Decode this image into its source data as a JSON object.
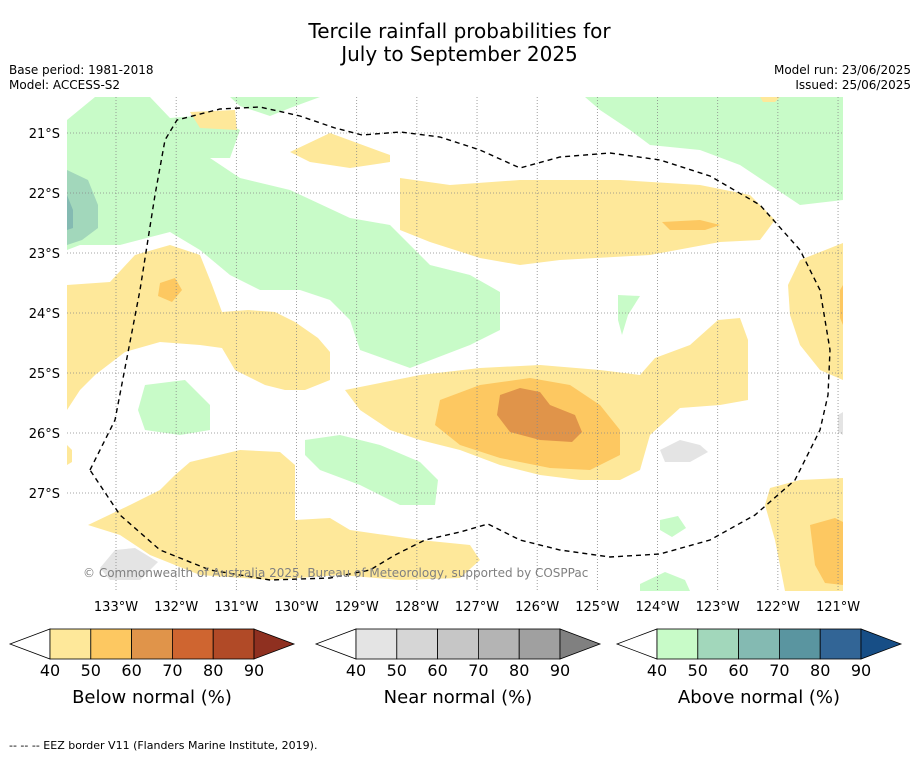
{
  "title_line1": "Tercile rainfall probabilities for",
  "title_line2": "July to September 2025",
  "base_period": "Base period: 1981-2018",
  "model": "Model: ACCESS-S2",
  "model_run": "Model run: 23/06/2025",
  "issued": "Issued: 25/06/2025",
  "copyright": "© Commonwealth of Australia 2025, Bureau of Meteorology, supported by COSPPac",
  "footer": "--  --  -- EEZ border V11 (Flanders Marine Institute, 2019).",
  "lat_labels": [
    "21°S",
    "22°S",
    "23°S",
    "24°S",
    "25°S",
    "26°S",
    "27°S"
  ],
  "lon_labels": [
    "133°W",
    "132°W",
    "131°W",
    "130°W",
    "129°W",
    "128°W",
    "127°W",
    "126°W",
    "125°W",
    "124°W",
    "123°W",
    "122°W",
    "121°W"
  ],
  "colorbars": [
    {
      "label": "Below normal (%)",
      "ticks": [
        "40",
        "50",
        "60",
        "70",
        "80",
        "90"
      ],
      "colors": [
        "#fee89a",
        "#fdc861",
        "#e0944a",
        "#cf6530",
        "#b14a27",
        "#8f3020"
      ]
    },
    {
      "label": "Near normal (%)",
      "ticks": [
        "40",
        "50",
        "60",
        "70",
        "80",
        "90"
      ],
      "colors": [
        "#e4e4e4",
        "#d6d6d6",
        "#c6c6c6",
        "#b4b4b4",
        "#a0a0a0",
        "#808080"
      ]
    },
    {
      "label": "Above normal (%)",
      "ticks": [
        "40",
        "50",
        "60",
        "70",
        "80",
        "90"
      ],
      "colors": [
        "#c8fbc8",
        "#a2d7bb",
        "#84bab2",
        "#5a95a0",
        "#326596",
        "#174e86"
      ]
    }
  ],
  "colors": {
    "below_40": "#fee89a",
    "below_50": "#fdc861",
    "below_60": "#e0944a",
    "above_40": "#c8fbc8",
    "above_50": "#a2d7bb",
    "above_60": "#84bab2",
    "near_40": "#e4e4e4"
  }
}
